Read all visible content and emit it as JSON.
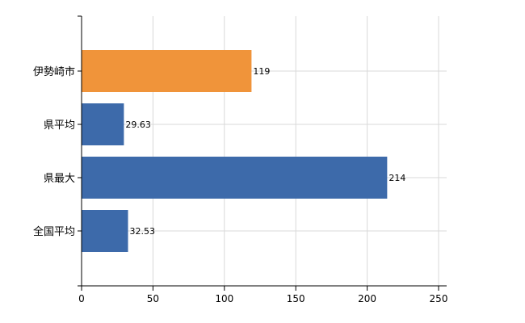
{
  "chart_data": {
    "type": "bar",
    "orientation": "horizontal",
    "categories": [
      "伊勢崎市",
      "県平均",
      "県最大",
      "全国平均"
    ],
    "values": [
      119,
      29.63,
      214,
      32.53
    ],
    "data_labels": [
      "119",
      "29.63",
      "214",
      "32.53"
    ],
    "colors": [
      "#F0943A",
      "#3D6AAA",
      "#3D6AAA",
      "#3D6AAA"
    ],
    "xlim": [
      0,
      250
    ],
    "xticks": [
      0,
      50,
      100,
      150,
      200,
      250
    ],
    "grid": true,
    "legend": "none"
  }
}
